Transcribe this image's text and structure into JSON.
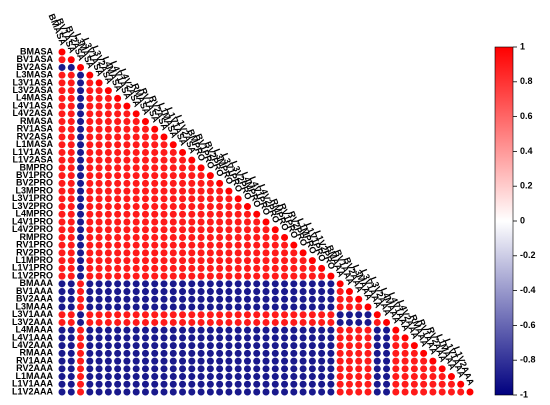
{
  "chart_data": {
    "type": "corrplot",
    "labels": [
      "BMASA",
      "BV1ASA",
      "BV2ASA",
      "L3MASA",
      "L3V1ASA",
      "L3V2ASA",
      "L4MASA",
      "L4V1ASA",
      "L4V2ASA",
      "RMASA",
      "RV1ASA",
      "RV2ASA",
      "L1MASA",
      "L1V1ASA",
      "L1V2ASA",
      "BMPRO",
      "BV1PRO",
      "BV2PRO",
      "L3MPRO",
      "L3V1PRO",
      "L3V2PRO",
      "L4MPRO",
      "L4V1PRO",
      "L4V2PRO",
      "RMPRO",
      "RV1PRO",
      "RV2PRO",
      "L1MPRO",
      "L1V1PRO",
      "L1V2PRO",
      "BMAAA",
      "BV1AAA",
      "BV2AAA",
      "L3MAAA",
      "L3V1AAA",
      "L3V2AAA",
      "L4MAAA",
      "L4V1AAA",
      "L4V2AAA",
      "RMAAA",
      "RV1AAA",
      "RV2AAA",
      "L1MAAA",
      "L1V1AAA",
      "L1V2AAA"
    ],
    "matrix": [
      [
        1
      ],
      [
        0.9,
        1
      ],
      [
        -0.9,
        -0.9,
        1
      ],
      [
        0.9,
        0.9,
        -0.9,
        1
      ],
      [
        0.9,
        0.9,
        -0.9,
        0.9,
        1
      ],
      [
        0.9,
        0.9,
        -0.9,
        0.9,
        0.9,
        1
      ],
      [
        0.9,
        0.9,
        -0.9,
        0.9,
        0.9,
        0.9,
        1
      ],
      [
        0.9,
        0.9,
        -0.9,
        0.9,
        0.9,
        0.9,
        0.9,
        1
      ],
      [
        0.9,
        0.9,
        -0.9,
        0.9,
        0.9,
        0.9,
        0.9,
        0.9,
        1
      ],
      [
        0.9,
        0.9,
        -0.9,
        0.9,
        0.9,
        0.9,
        0.9,
        0.9,
        0.9,
        1
      ],
      [
        0.9,
        0.9,
        -0.9,
        0.9,
        0.9,
        0.9,
        0.9,
        0.9,
        0.9,
        0.9,
        1
      ],
      [
        0.9,
        0.9,
        -0.9,
        0.9,
        0.9,
        0.9,
        0.9,
        0.9,
        0.9,
        0.9,
        0.9,
        1
      ],
      [
        0.9,
        0.9,
        -0.9,
        0.9,
        0.9,
        0.9,
        0.9,
        0.9,
        0.9,
        0.9,
        0.9,
        0.9,
        1
      ],
      [
        0.9,
        0.9,
        -0.9,
        0.9,
        0.9,
        0.9,
        0.9,
        0.9,
        0.9,
        0.9,
        0.9,
        0.9,
        0.9,
        1
      ],
      [
        0.9,
        0.9,
        -0.9,
        0.9,
        0.9,
        0.9,
        0.9,
        0.9,
        0.9,
        0.9,
        0.9,
        0.9,
        0.9,
        0.9,
        1
      ],
      [
        0.9,
        0.9,
        -0.9,
        0.9,
        0.9,
        0.9,
        0.9,
        0.9,
        0.9,
        0.9,
        0.9,
        0.9,
        0.9,
        0.9,
        0.9,
        1
      ],
      [
        0.9,
        0.9,
        -0.9,
        0.9,
        0.9,
        0.9,
        0.9,
        0.9,
        0.9,
        0.9,
        0.9,
        0.9,
        0.9,
        0.9,
        0.9,
        0.9,
        1
      ],
      [
        0.9,
        0.9,
        -0.9,
        0.9,
        0.9,
        0.9,
        0.9,
        0.9,
        0.9,
        0.9,
        0.9,
        0.9,
        0.9,
        0.9,
        0.9,
        0.9,
        0.9,
        1
      ],
      [
        0.9,
        0.9,
        -0.9,
        0.9,
        0.9,
        0.9,
        0.9,
        0.9,
        0.9,
        0.9,
        0.9,
        0.9,
        0.9,
        0.9,
        0.9,
        0.9,
        0.9,
        0.9,
        1
      ],
      [
        0.9,
        0.9,
        -0.9,
        0.9,
        0.9,
        0.9,
        0.9,
        0.9,
        0.9,
        0.9,
        0.9,
        0.9,
        0.9,
        0.9,
        0.9,
        0.9,
        0.9,
        0.9,
        0.9,
        1
      ],
      [
        0.9,
        0.9,
        -0.9,
        0.9,
        0.9,
        0.9,
        0.9,
        0.9,
        0.9,
        0.9,
        0.9,
        0.9,
        0.9,
        0.9,
        0.9,
        0.9,
        0.9,
        0.9,
        0.9,
        0.9,
        1
      ],
      [
        0.9,
        0.9,
        -0.9,
        0.9,
        0.9,
        0.9,
        0.9,
        0.9,
        0.9,
        0.9,
        0.9,
        0.9,
        0.9,
        0.9,
        0.9,
        0.9,
        0.9,
        0.9,
        0.9,
        0.9,
        0.9,
        1
      ],
      [
        0.9,
        0.9,
        -0.9,
        0.9,
        0.9,
        0.9,
        0.9,
        0.9,
        0.9,
        0.9,
        0.9,
        0.9,
        0.9,
        0.9,
        0.9,
        0.9,
        0.9,
        0.9,
        0.9,
        0.9,
        0.9,
        0.9,
        1
      ],
      [
        0.9,
        0.9,
        -0.9,
        0.9,
        0.9,
        0.9,
        0.9,
        0.9,
        0.9,
        0.9,
        0.9,
        0.9,
        0.9,
        0.9,
        0.9,
        0.9,
        0.9,
        0.9,
        0.9,
        0.9,
        0.9,
        0.9,
        0.9,
        1
      ],
      [
        0.9,
        0.9,
        -0.9,
        0.9,
        0.9,
        0.9,
        0.9,
        0.9,
        0.9,
        0.9,
        0.9,
        0.9,
        0.9,
        0.9,
        0.9,
        0.9,
        0.9,
        0.9,
        0.9,
        0.9,
        0.9,
        0.9,
        0.9,
        0.9,
        1
      ],
      [
        0.9,
        0.9,
        -0.9,
        0.9,
        0.9,
        0.9,
        0.9,
        0.9,
        0.9,
        0.9,
        0.9,
        0.9,
        0.9,
        0.9,
        0.9,
        0.9,
        0.9,
        0.9,
        0.9,
        0.9,
        0.9,
        0.9,
        0.9,
        0.9,
        0.9,
        1
      ],
      [
        0.9,
        0.9,
        -0.9,
        0.9,
        0.9,
        0.9,
        0.9,
        0.9,
        0.9,
        0.9,
        0.9,
        0.9,
        0.9,
        0.9,
        0.9,
        0.9,
        0.9,
        0.9,
        0.9,
        0.9,
        0.9,
        0.9,
        0.9,
        0.9,
        0.9,
        0.9,
        1
      ],
      [
        0.9,
        0.9,
        -0.9,
        0.9,
        0.9,
        0.9,
        0.9,
        0.9,
        0.9,
        0.9,
        0.9,
        0.9,
        0.9,
        0.9,
        0.9,
        0.9,
        0.9,
        0.9,
        0.9,
        0.9,
        0.9,
        0.9,
        0.9,
        0.9,
        0.9,
        0.9,
        0.9,
        1
      ],
      [
        0.9,
        0.9,
        -0.9,
        0.9,
        0.9,
        0.9,
        0.9,
        0.9,
        0.9,
        0.9,
        0.9,
        0.9,
        0.9,
        0.9,
        0.9,
        0.9,
        0.9,
        0.9,
        0.9,
        0.9,
        0.9,
        0.9,
        0.9,
        0.9,
        0.9,
        0.9,
        0.9,
        0.9,
        1
      ],
      [
        0.9,
        0.9,
        -0.9,
        0.9,
        0.9,
        0.9,
        0.9,
        0.9,
        0.9,
        0.9,
        0.9,
        0.9,
        0.9,
        0.9,
        0.9,
        0.9,
        0.9,
        0.9,
        0.9,
        0.9,
        0.9,
        0.9,
        0.9,
        0.9,
        0.9,
        0.9,
        0.9,
        0.9,
        0.9,
        1
      ],
      [
        -0.9,
        -0.9,
        0.9,
        -0.9,
        -0.9,
        -0.9,
        -0.9,
        -0.9,
        -0.9,
        -0.9,
        -0.9,
        -0.9,
        -0.9,
        -0.9,
        -0.9,
        -0.9,
        -0.9,
        -0.9,
        -0.9,
        -0.9,
        -0.9,
        -0.9,
        -0.9,
        -0.9,
        -0.9,
        -0.9,
        -0.9,
        -0.9,
        -0.9,
        -0.9,
        1
      ],
      [
        -0.9,
        -0.9,
        0.9,
        -0.9,
        -0.9,
        -0.9,
        -0.9,
        -0.9,
        -0.9,
        -0.9,
        -0.9,
        -0.9,
        -0.9,
        -0.9,
        -0.9,
        -0.9,
        -0.9,
        -0.9,
        -0.9,
        -0.9,
        -0.9,
        -0.9,
        -0.9,
        -0.9,
        -0.9,
        -0.9,
        -0.9,
        -0.9,
        -0.9,
        -0.9,
        0.9,
        1
      ],
      [
        -0.9,
        -0.9,
        0.9,
        -0.9,
        -0.9,
        -0.9,
        -0.9,
        -0.9,
        -0.9,
        -0.9,
        -0.9,
        -0.9,
        -0.9,
        -0.9,
        -0.9,
        -0.9,
        -0.9,
        -0.9,
        -0.9,
        -0.9,
        -0.9,
        -0.9,
        -0.9,
        -0.9,
        -0.9,
        -0.9,
        -0.9,
        -0.9,
        -0.9,
        -0.9,
        0.9,
        0.9,
        1
      ],
      [
        -0.9,
        -0.9,
        0.9,
        -0.9,
        -0.9,
        -0.9,
        -0.9,
        -0.9,
        -0.9,
        -0.9,
        -0.9,
        -0.9,
        -0.9,
        -0.9,
        -0.9,
        -0.9,
        -0.9,
        -0.9,
        -0.9,
        -0.9,
        -0.9,
        -0.9,
        -0.9,
        -0.9,
        -0.9,
        -0.9,
        -0.9,
        -0.9,
        -0.9,
        -0.9,
        0.9,
        0.9,
        0.9,
        1
      ],
      [
        0.9,
        0.9,
        -0.9,
        0.9,
        0.9,
        0.9,
        0.9,
        0.9,
        0.9,
        0.9,
        0.9,
        0.9,
        0.9,
        0.9,
        0.9,
        0.9,
        0.9,
        0.9,
        0.9,
        0.9,
        0.9,
        0.9,
        0.9,
        0.9,
        0.9,
        0.9,
        0.9,
        0.9,
        0.9,
        0.9,
        -0.9,
        -0.9,
        -0.9,
        -0.9,
        1
      ],
      [
        0.9,
        0.9,
        -0.9,
        0.9,
        0.9,
        0.9,
        0.9,
        0.9,
        0.9,
        0.9,
        0.9,
        0.9,
        0.9,
        0.9,
        0.9,
        0.9,
        0.9,
        0.9,
        0.9,
        0.9,
        0.9,
        0.9,
        0.9,
        0.9,
        0.9,
        0.9,
        0.9,
        0.9,
        0.9,
        0.9,
        -0.9,
        -0.9,
        -0.9,
        -0.9,
        0.9,
        1
      ],
      [
        -0.9,
        -0.9,
        0.9,
        -0.9,
        -0.9,
        -0.9,
        -0.9,
        -0.9,
        -0.9,
        -0.9,
        -0.9,
        -0.9,
        -0.9,
        -0.9,
        -0.9,
        -0.9,
        -0.9,
        -0.9,
        -0.9,
        -0.9,
        -0.9,
        -0.9,
        -0.9,
        -0.9,
        -0.9,
        -0.9,
        -0.9,
        -0.9,
        -0.9,
        -0.9,
        0.9,
        0.9,
        0.9,
        0.9,
        -0.9,
        -0.9,
        1
      ],
      [
        -0.9,
        -0.9,
        0.9,
        -0.9,
        -0.9,
        -0.9,
        -0.9,
        -0.9,
        -0.9,
        -0.9,
        -0.9,
        -0.9,
        -0.9,
        -0.9,
        -0.9,
        -0.9,
        -0.9,
        -0.9,
        -0.9,
        -0.9,
        -0.9,
        -0.9,
        -0.9,
        -0.9,
        -0.9,
        -0.9,
        -0.9,
        -0.9,
        -0.9,
        -0.9,
        0.9,
        0.9,
        0.9,
        0.9,
        -0.9,
        -0.9,
        0.9,
        1
      ],
      [
        -0.9,
        -0.9,
        0.9,
        -0.9,
        -0.9,
        -0.9,
        -0.9,
        -0.9,
        -0.9,
        -0.9,
        -0.9,
        -0.9,
        -0.9,
        -0.9,
        -0.9,
        -0.9,
        -0.9,
        -0.9,
        -0.9,
        -0.9,
        -0.9,
        -0.9,
        -0.9,
        -0.9,
        -0.9,
        -0.9,
        -0.9,
        -0.9,
        -0.9,
        -0.9,
        0.9,
        0.9,
        0.9,
        0.9,
        -0.9,
        -0.9,
        0.9,
        0.9,
        1
      ],
      [
        -0.9,
        -0.9,
        0.9,
        -0.9,
        -0.9,
        -0.9,
        -0.9,
        -0.9,
        -0.9,
        -0.9,
        -0.9,
        -0.9,
        -0.9,
        -0.9,
        -0.9,
        -0.9,
        -0.9,
        -0.9,
        -0.9,
        -0.9,
        -0.9,
        -0.9,
        -0.9,
        -0.9,
        -0.9,
        -0.9,
        -0.9,
        -0.9,
        -0.9,
        -0.9,
        0.9,
        0.9,
        0.9,
        0.9,
        -0.9,
        -0.9,
        0.9,
        0.9,
        0.9,
        1
      ],
      [
        -0.9,
        -0.9,
        0.9,
        -0.9,
        -0.9,
        -0.9,
        -0.9,
        -0.9,
        -0.9,
        -0.9,
        -0.9,
        -0.9,
        -0.9,
        -0.9,
        -0.9,
        -0.9,
        -0.9,
        -0.9,
        -0.9,
        -0.9,
        -0.9,
        -0.9,
        -0.9,
        -0.9,
        -0.9,
        -0.9,
        -0.9,
        -0.9,
        -0.9,
        -0.9,
        0.9,
        0.9,
        0.9,
        0.9,
        -0.9,
        -0.9,
        0.9,
        0.9,
        0.9,
        0.9,
        1
      ],
      [
        -0.9,
        -0.9,
        0.9,
        -0.9,
        -0.9,
        -0.9,
        -0.9,
        -0.9,
        -0.9,
        -0.9,
        -0.9,
        -0.9,
        -0.9,
        -0.9,
        -0.9,
        -0.9,
        -0.9,
        -0.9,
        -0.9,
        -0.9,
        -0.9,
        -0.9,
        -0.9,
        -0.9,
        -0.9,
        -0.9,
        -0.9,
        -0.9,
        -0.9,
        -0.9,
        0.9,
        0.9,
        0.9,
        0.9,
        -0.9,
        -0.9,
        0.9,
        0.9,
        0.9,
        0.9,
        0.9,
        1
      ],
      [
        -0.9,
        -0.9,
        0.9,
        -0.9,
        -0.9,
        -0.9,
        -0.9,
        -0.9,
        -0.9,
        -0.9,
        -0.9,
        -0.9,
        -0.9,
        -0.9,
        -0.9,
        -0.9,
        -0.9,
        -0.9,
        -0.9,
        -0.9,
        -0.9,
        -0.9,
        -0.9,
        -0.9,
        -0.9,
        -0.9,
        -0.9,
        -0.9,
        -0.9,
        -0.9,
        0.9,
        0.9,
        0.9,
        0.9,
        -0.9,
        -0.9,
        0.9,
        0.9,
        0.9,
        0.9,
        0.9,
        0.9,
        1
      ],
      [
        -0.9,
        -0.9,
        0.9,
        -0.9,
        -0.9,
        -0.9,
        -0.9,
        -0.9,
        -0.9,
        -0.9,
        -0.9,
        -0.9,
        -0.9,
        -0.9,
        -0.9,
        -0.9,
        -0.9,
        -0.9,
        -0.9,
        -0.9,
        -0.9,
        -0.9,
        -0.9,
        -0.9,
        -0.9,
        -0.9,
        -0.9,
        -0.9,
        -0.9,
        -0.9,
        0.9,
        0.9,
        0.9,
        0.9,
        -0.9,
        -0.9,
        0.9,
        0.9,
        0.9,
        0.9,
        0.9,
        0.9,
        0.9,
        1
      ],
      [
        -0.9,
        -0.9,
        0.9,
        -0.9,
        -0.9,
        -0.9,
        -0.9,
        -0.9,
        -0.9,
        -0.9,
        -0.9,
        -0.9,
        -0.9,
        -0.9,
        -0.9,
        -0.9,
        -0.9,
        -0.9,
        -0.9,
        -0.9,
        -0.9,
        -0.9,
        -0.9,
        -0.9,
        -0.9,
        -0.9,
        -0.9,
        -0.9,
        -0.9,
        -0.9,
        0.9,
        0.9,
        0.9,
        0.9,
        -0.9,
        -0.9,
        0.9,
        0.9,
        0.9,
        0.9,
        0.9,
        0.9,
        0.9,
        0.9,
        1
      ]
    ],
    "clim": [
      -1,
      1
    ],
    "cticks": [
      1,
      0.8,
      0.6,
      0.4,
      0.2,
      0,
      -0.2,
      -0.4,
      -0.6,
      -0.8,
      -1
    ],
    "colors": [
      "#00007f",
      "#ffffff",
      "#ff0000"
    ]
  }
}
